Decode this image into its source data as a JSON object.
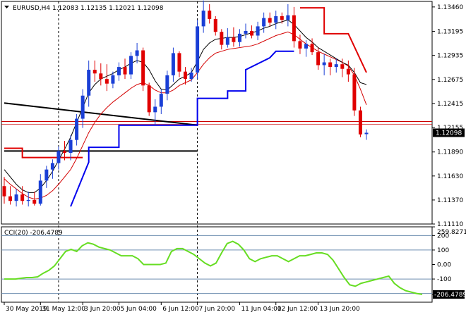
{
  "header": {
    "symbol_line": "EURUSD,H4  1.12083 1.12135 1.12021 1.12098",
    "cci_line": "CCI(20) -206.4789"
  },
  "colors": {
    "bull": "#1a3fd6",
    "bear": "#e00000",
    "ma_fast": "#000000",
    "ma_slow": "#d40000",
    "trail_up": "#0000ee",
    "trail_down": "#e00000",
    "trendline": "#000000",
    "cci": "#66dd22",
    "price_tag_bg": "#000000",
    "price_line": "#cc0000"
  },
  "chart_data": [
    {
      "type": "candlestick",
      "title": "EURUSD,H4",
      "quote": {
        "open": 1.12083,
        "high": 1.12135,
        "low": 1.12021,
        "close": 1.12098
      },
      "ylim": [
        1.1111,
        1.1352
      ],
      "yticks": [
        "1.13460",
        "1.13195",
        "1.12935",
        "1.12675",
        "1.12415",
        "1.12155",
        "1.11890",
        "1.11630",
        "1.11370",
        "1.11110"
      ],
      "current_price": "1.12098",
      "xticks": [
        "30 May 2019",
        "31 May 12:00",
        "3 Jun 20:00",
        "5 Jun 04:00",
        "6 Jun 12:00",
        "7 Jun 20:00",
        "11 Jun 04:00",
        "12 Jun 12:00",
        "13 Jun 20:00"
      ],
      "xtick_bars": [
        0,
        6,
        13,
        19,
        26,
        32,
        39,
        45,
        52
      ],
      "session_dividers": [
        9,
        32
      ],
      "candles": [
        [
          1.1152,
          1.1162,
          1.1133,
          1.1141
        ],
        [
          1.1141,
          1.1152,
          1.1132,
          1.1136
        ],
        [
          1.1136,
          1.1149,
          1.113,
          1.1143
        ],
        [
          1.1143,
          1.1152,
          1.1132,
          1.1136
        ],
        [
          1.1136,
          1.1146,
          1.113,
          1.1137
        ],
        [
          1.1137,
          1.1146,
          1.1131,
          1.1133
        ],
        [
          1.1133,
          1.1165,
          1.1131,
          1.1158
        ],
        [
          1.1158,
          1.1174,
          1.115,
          1.117
        ],
        [
          1.117,
          1.1181,
          1.116,
          1.1177
        ],
        [
          1.1177,
          1.1195,
          1.117,
          1.119
        ],
        [
          1.119,
          1.1201,
          1.118,
          1.1188
        ],
        [
          1.1188,
          1.1207,
          1.118,
          1.1202
        ],
        [
          1.1202,
          1.123,
          1.1196,
          1.1225
        ],
        [
          1.1225,
          1.1257,
          1.1215,
          1.125
        ],
        [
          1.125,
          1.1288,
          1.1238,
          1.1278
        ],
        [
          1.1278,
          1.1288,
          1.1265,
          1.1274
        ],
        [
          1.1274,
          1.1285,
          1.1261,
          1.1268
        ],
        [
          1.1268,
          1.1284,
          1.1255,
          1.1263
        ],
        [
          1.1263,
          1.1276,
          1.1258,
          1.1272
        ],
        [
          1.1272,
          1.1286,
          1.1266,
          1.1281
        ],
        [
          1.1281,
          1.129,
          1.1268,
          1.1273
        ],
        [
          1.1273,
          1.1297,
          1.1268,
          1.1293
        ],
        [
          1.1293,
          1.1307,
          1.1285,
          1.1299
        ],
        [
          1.1299,
          1.1302,
          1.1255,
          1.1261
        ],
        [
          1.1261,
          1.1264,
          1.1228,
          1.1232
        ],
        [
          1.1232,
          1.1246,
          1.1218,
          1.1238
        ],
        [
          1.1238,
          1.1257,
          1.123,
          1.1252
        ],
        [
          1.1252,
          1.1277,
          1.1245,
          1.1272
        ],
        [
          1.1272,
          1.1302,
          1.1265,
          1.1296
        ],
        [
          1.1296,
          1.1298,
          1.127,
          1.1276
        ],
        [
          1.1276,
          1.1281,
          1.1262,
          1.1268
        ],
        [
          1.1268,
          1.128,
          1.1265,
          1.1275
        ],
        [
          1.1275,
          1.1332,
          1.1268,
          1.1325
        ],
        [
          1.1325,
          1.1353,
          1.1318,
          1.1342
        ],
        [
          1.1342,
          1.1349,
          1.1328,
          1.1333
        ],
        [
          1.1333,
          1.1336,
          1.1315,
          1.1319
        ],
        [
          1.1319,
          1.1322,
          1.13,
          1.1305
        ],
        [
          1.1305,
          1.1323,
          1.1302,
          1.1313
        ],
        [
          1.1313,
          1.1324,
          1.1303,
          1.1308
        ],
        [
          1.1308,
          1.1322,
          1.1303,
          1.1317
        ],
        [
          1.1317,
          1.1328,
          1.1312,
          1.132
        ],
        [
          1.132,
          1.1326,
          1.1312,
          1.1315
        ],
        [
          1.1315,
          1.133,
          1.131,
          1.1325
        ],
        [
          1.1325,
          1.134,
          1.1318,
          1.1334
        ],
        [
          1.1334,
          1.134,
          1.1325,
          1.1329
        ],
        [
          1.1329,
          1.1342,
          1.1322,
          1.1336
        ],
        [
          1.1336,
          1.134,
          1.1328,
          1.1332
        ],
        [
          1.1332,
          1.1349,
          1.1325,
          1.1337
        ],
        [
          1.1337,
          1.1346,
          1.1302,
          1.1309
        ],
        [
          1.1309,
          1.1316,
          1.1295,
          1.1301
        ],
        [
          1.1301,
          1.131,
          1.1292,
          1.1306
        ],
        [
          1.1306,
          1.1312,
          1.1294,
          1.1297
        ],
        [
          1.1297,
          1.1302,
          1.1278,
          1.1283
        ],
        [
          1.1283,
          1.1295,
          1.1272,
          1.1286
        ],
        [
          1.1286,
          1.129,
          1.1272,
          1.1281
        ],
        [
          1.1281,
          1.129,
          1.1275,
          1.1284
        ],
        [
          1.1284,
          1.129,
          1.127,
          1.1279
        ],
        [
          1.1279,
          1.1288,
          1.1265,
          1.1273
        ],
        [
          1.1273,
          1.128,
          1.1228,
          1.1234
        ],
        [
          1.1234,
          1.1238,
          1.1205,
          1.1208
        ],
        [
          1.12083,
          1.12135,
          1.12021,
          1.12098
        ]
      ],
      "ma_fast": [
        1.117,
        1.1162,
        1.1154,
        1.1148,
        1.1145,
        1.1145,
        1.115,
        1.1158,
        1.1168,
        1.118,
        1.1192,
        1.1205,
        1.1221,
        1.1237,
        1.1253,
        1.1262,
        1.1268,
        1.1271,
        1.1274,
        1.1278,
        1.1281,
        1.1285,
        1.1288,
        1.1286,
        1.1278,
        1.1266,
        1.1257,
        1.1256,
        1.1262,
        1.1268,
        1.1271,
        1.1275,
        1.1287,
        1.13,
        1.1307,
        1.1311,
        1.1312,
        1.1313,
        1.1313,
        1.1314,
        1.1316,
        1.1318,
        1.132,
        1.1323,
        1.1325,
        1.1328,
        1.133,
        1.1332,
        1.1327,
        1.132,
        1.1313,
        1.1308,
        1.1302,
        1.1298,
        1.1294,
        1.129,
        1.1286,
        1.1283,
        1.1275,
        1.1264,
        1.1262
      ],
      "ma_slow": [
        1.116,
        1.1154,
        1.1149,
        1.1144,
        1.114,
        1.1138,
        1.1139,
        1.1142,
        1.1147,
        1.1154,
        1.1162,
        1.117,
        1.1182,
        1.1196,
        1.121,
        1.1221,
        1.123,
        1.1237,
        1.1243,
        1.1248,
        1.1253,
        1.1258,
        1.1262,
        1.1264,
        1.1261,
        1.1256,
        1.1253,
        1.1253,
        1.1256,
        1.1261,
        1.1264,
        1.1267,
        1.1275,
        1.1284,
        1.1291,
        1.1296,
        1.1298,
        1.13,
        1.1301,
        1.1302,
        1.1303,
        1.1304,
        1.1306,
        1.1309,
        1.1312,
        1.1315,
        1.1317,
        1.1319,
        1.1316,
        1.1311,
        1.1306,
        1.1302,
        1.1298,
        1.1295,
        1.1292,
        1.1289,
        1.1286,
        1.1282,
        1.1272,
        1.1257,
        1.124
      ],
      "trail_down_a": [
        [
          0,
          1.1193
        ],
        [
          3,
          1.1193
        ],
        [
          3,
          1.1183
        ],
        [
          13,
          1.1183
        ]
      ],
      "trail_up": [
        [
          11,
          1.113
        ],
        [
          13,
          1.1162
        ],
        [
          14,
          1.1178
        ],
        [
          14,
          1.1194
        ],
        [
          19,
          1.1194
        ],
        [
          19,
          1.1218
        ],
        [
          32,
          1.1218
        ],
        [
          32,
          1.1247
        ],
        [
          37,
          1.1247
        ],
        [
          37,
          1.1255
        ],
        [
          40,
          1.1255
        ],
        [
          40,
          1.1278
        ],
        [
          44,
          1.1291
        ],
        [
          45,
          1.1298
        ],
        [
          48,
          1.1298
        ]
      ],
      "trail_down_b": [
        [
          49,
          1.1345
        ],
        [
          53,
          1.1345
        ],
        [
          53,
          1.1317
        ],
        [
          57,
          1.1317
        ],
        [
          60,
          1.1275
        ]
      ],
      "trendline_a": [
        [
          0,
          1.1242
        ],
        [
          32,
          1.1218
        ]
      ],
      "trendline_b": [
        [
          0,
          1.119
        ],
        [
          32,
          1.119
        ]
      ],
      "price_line": 1.1222
    },
    {
      "type": "line",
      "title": "CCI(20)",
      "current": -206.4789,
      "ylim": [
        -260,
        260
      ],
      "levels": [
        200,
        100,
        -100,
        -200
      ],
      "yticks": [
        "259.8271",
        "200",
        "100",
        "0.00",
        "-100",
        "-206.4789"
      ],
      "cci": [
        -100,
        -100,
        -100,
        -95,
        -90,
        -90,
        -85,
        -60,
        -40,
        -10,
        40,
        90,
        105,
        90,
        130,
        150,
        140,
        120,
        110,
        100,
        80,
        60,
        60,
        60,
        40,
        0,
        0,
        0,
        0,
        10,
        90,
        110,
        110,
        90,
        70,
        40,
        10,
        -10,
        10,
        80,
        145,
        160,
        140,
        100,
        40,
        20,
        40,
        50,
        60,
        60,
        40,
        20,
        40,
        60,
        60,
        70,
        80,
        80,
        70,
        30,
        -30,
        -90,
        -140,
        -150,
        -130,
        -120,
        -110,
        -100,
        -90,
        -80,
        -130,
        -160,
        -180,
        -190,
        -200,
        -206
      ]
    }
  ]
}
